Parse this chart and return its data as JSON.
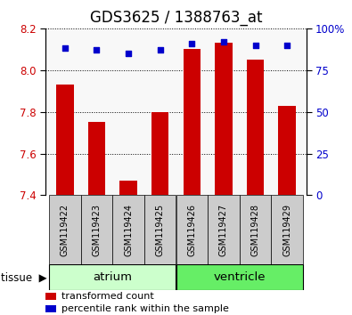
{
  "title": "GDS3625 / 1388763_at",
  "samples": [
    "GSM119422",
    "GSM119423",
    "GSM119424",
    "GSM119425",
    "GSM119426",
    "GSM119427",
    "GSM119428",
    "GSM119429"
  ],
  "red_values": [
    7.93,
    7.75,
    7.47,
    7.8,
    8.1,
    8.13,
    8.05,
    7.83
  ],
  "blue_values": [
    88,
    87,
    85,
    87,
    91,
    92,
    90,
    90
  ],
  "ylim_left": [
    7.4,
    8.2
  ],
  "ylim_right": [
    0,
    100
  ],
  "yticks_left": [
    7.4,
    7.6,
    7.8,
    8.0,
    8.2
  ],
  "yticks_right": [
    0,
    25,
    50,
    75,
    100
  ],
  "ytick_labels_right": [
    "0",
    "25",
    "50",
    "75",
    "100%"
  ],
  "groups": [
    {
      "label": "atrium",
      "start": 0,
      "end": 4,
      "color": "#ccffcc"
    },
    {
      "label": "ventricle",
      "start": 4,
      "end": 8,
      "color": "#66ee66"
    }
  ],
  "bar_color": "#cc0000",
  "dot_color": "#0000cc",
  "bar_bottom": 7.4,
  "legend_items": [
    {
      "label": "transformed count",
      "color": "#cc0000"
    },
    {
      "label": "percentile rank within the sample",
      "color": "#0000cc"
    }
  ],
  "title_fontsize": 12,
  "tick_fontsize": 8.5,
  "sample_fontsize": 7,
  "group_label_fontsize": 9.5,
  "legend_fontsize": 8,
  "tissue_label": "tissue",
  "background_color": "#ffffff",
  "gray_color": "#cccccc"
}
